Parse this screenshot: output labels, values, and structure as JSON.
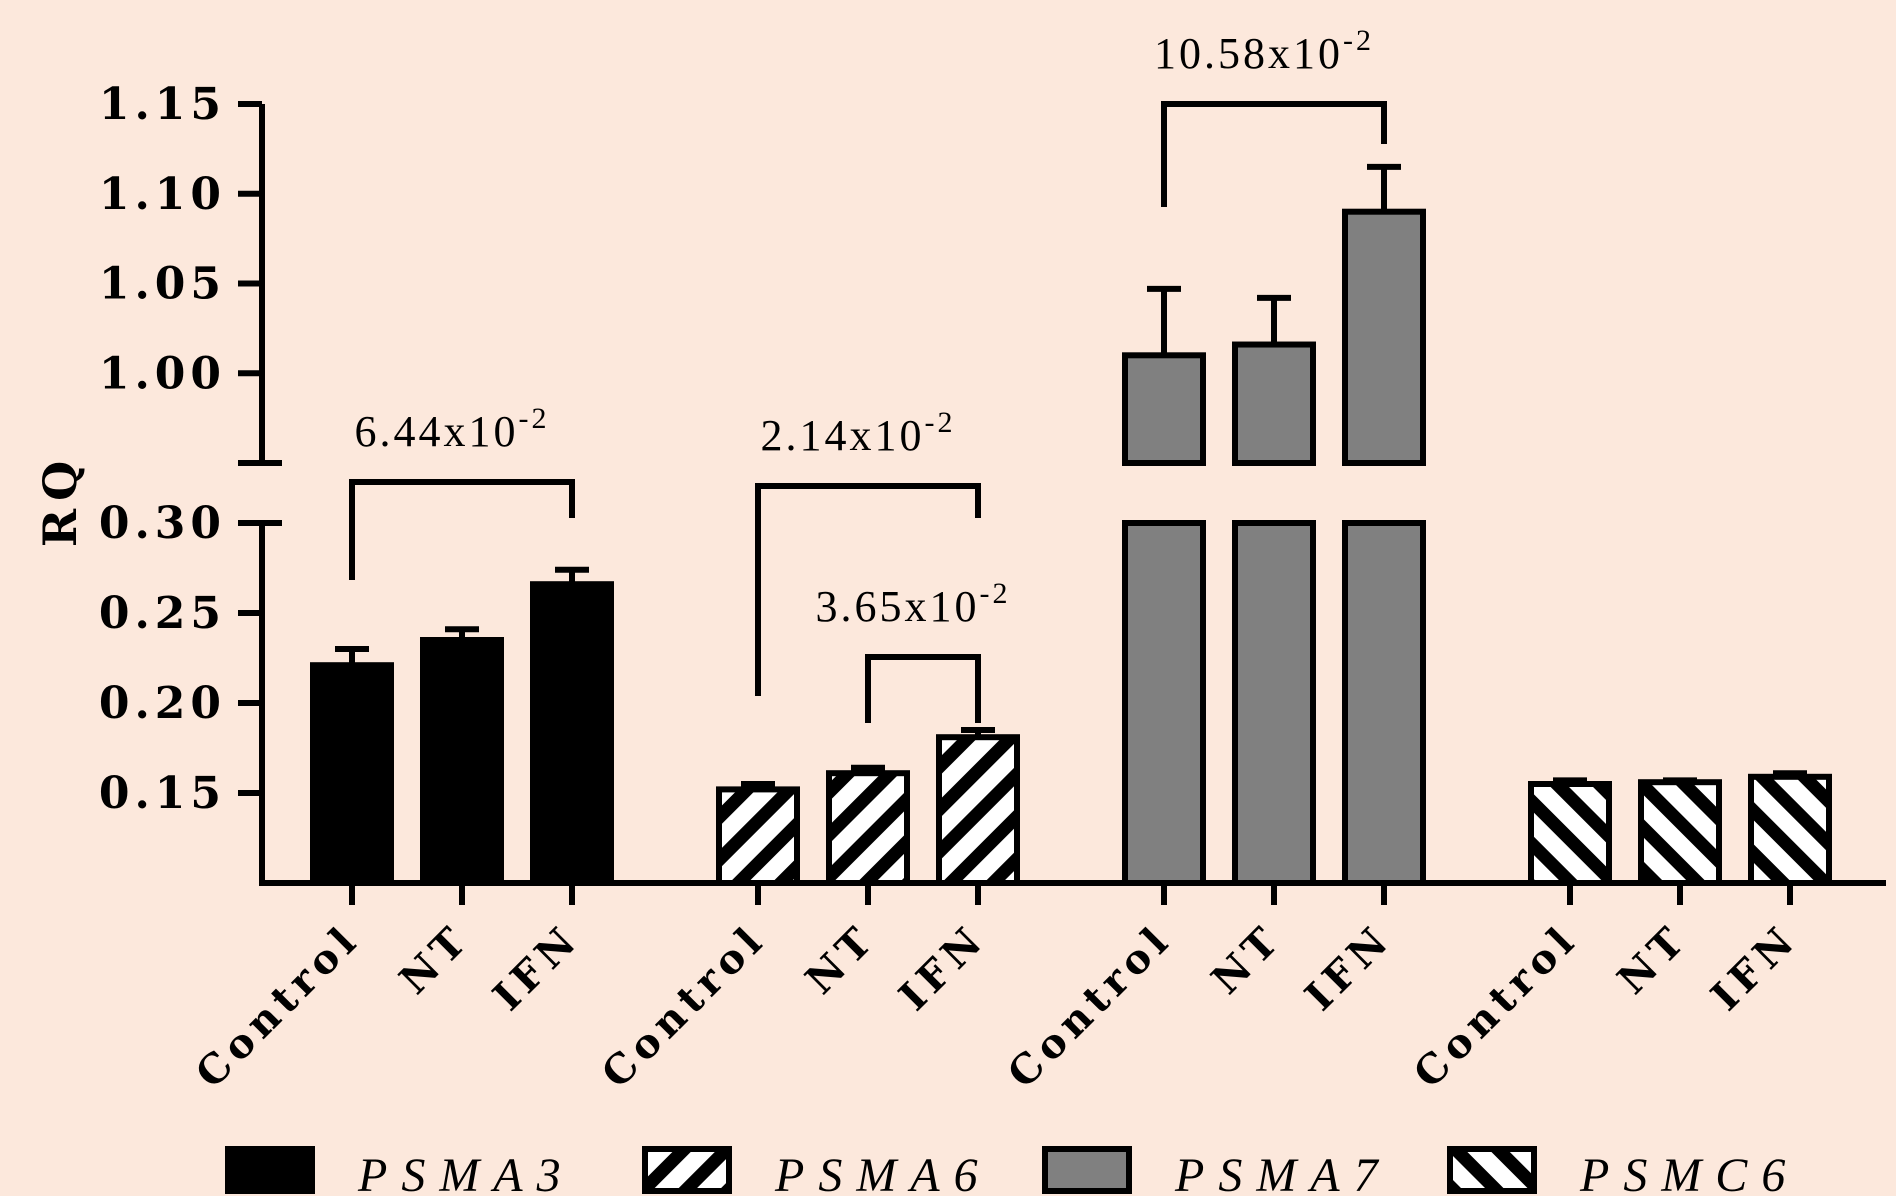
{
  "chart_data": {
    "type": "bar",
    "ylabel": "RQ",
    "axis_break": [
      0.3,
      0.95
    ],
    "ylim": [
      0.1,
      1.15
    ],
    "yticks": [
      "1.15",
      "1.10",
      "1.05",
      "1.00",
      "0.30",
      "0.25",
      "0.20",
      "0.15"
    ],
    "groups": [
      {
        "name": "PSMA3",
        "fill": "solid-black",
        "categories": [
          "Control",
          "NT",
          "IFN"
        ],
        "values": [
          0.221,
          0.235,
          0.266
        ],
        "errors": [
          0.009,
          0.006,
          0.008
        ]
      },
      {
        "name": "PSMA6",
        "fill": "hatch-forward",
        "categories": [
          "Control",
          "NT",
          "IFN"
        ],
        "values": [
          0.152,
          0.161,
          0.181
        ],
        "errors": [
          0.003,
          0.003,
          0.004
        ]
      },
      {
        "name": "PSMA7",
        "fill": "solid-gray",
        "categories": [
          "Control",
          "NT",
          "IFN"
        ],
        "values": [
          1.01,
          1.016,
          1.09
        ],
        "errors": [
          0.037,
          0.026,
          0.025
        ]
      },
      {
        "name": "PSMC6",
        "fill": "hatch-backward",
        "categories": [
          "Control",
          "NT",
          "IFN"
        ],
        "values": [
          0.155,
          0.156,
          0.159
        ],
        "errors": [
          0.002,
          0.001,
          0.002
        ]
      }
    ],
    "annotations": [
      {
        "group": 0,
        "from": 0,
        "to": 2,
        "base": "6.44x10",
        "exp": "-2"
      },
      {
        "group": 1,
        "from": 0,
        "to": 2,
        "base": "2.14x10",
        "exp": "-2"
      },
      {
        "group": 1,
        "from": 1,
        "to": 2,
        "base": "3.65x10",
        "exp": "-2"
      },
      {
        "group": 2,
        "from": 0,
        "to": 2,
        "base": "10.58x10",
        "exp": "-2"
      }
    ],
    "legend": {
      "position": "bottom",
      "items": [
        {
          "label": "PSMA3",
          "fill": "solid-black"
        },
        {
          "label": "PSMA6",
          "fill": "hatch-forward"
        },
        {
          "label": "PSMA7",
          "fill": "solid-gray"
        },
        {
          "label": "PSMC6",
          "fill": "hatch-backward"
        }
      ]
    },
    "colors": {
      "background": "#fce8dc",
      "black": "#000000",
      "gray": "#808080",
      "white": "#ffffff"
    }
  }
}
